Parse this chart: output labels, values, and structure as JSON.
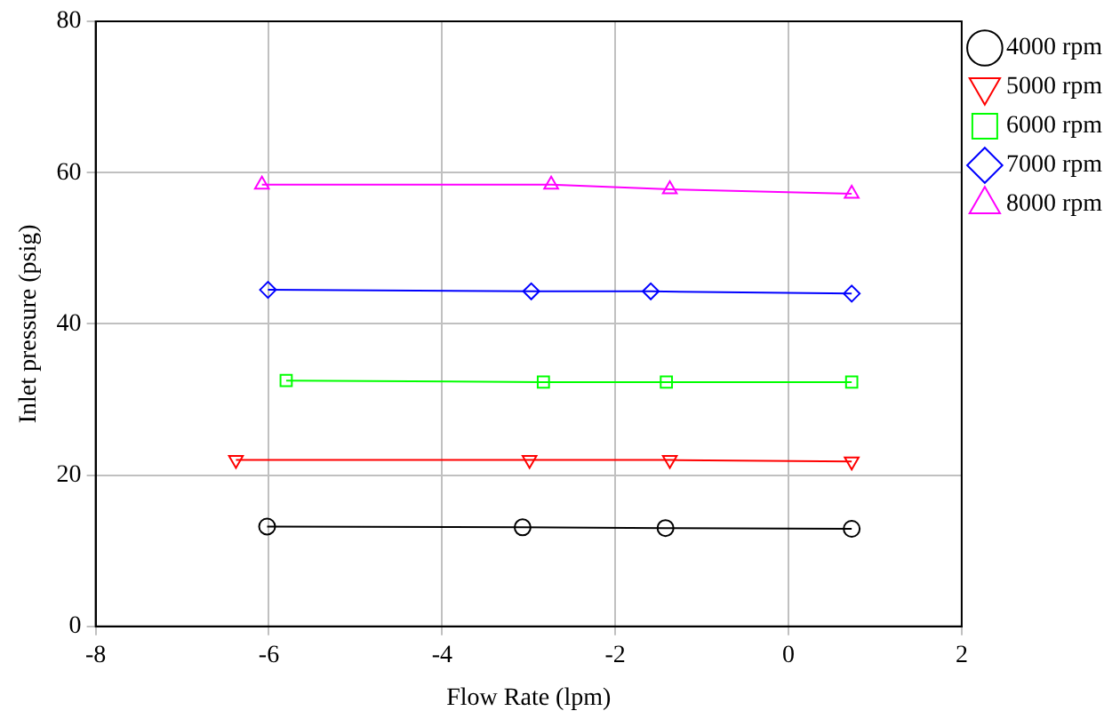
{
  "chart_data": {
    "type": "line",
    "xlabel": "Flow Rate (lpm)",
    "ylabel": "Inlet pressure (psig)",
    "xlim": [
      -8,
      2
    ],
    "xticks": [
      -8,
      -6,
      -4,
      -2,
      0,
      2
    ],
    "ylim": [
      0,
      80
    ],
    "yticks": [
      0,
      20,
      40,
      60,
      80
    ],
    "grid": true,
    "legend": "top right",
    "line_style": "solid",
    "series": [
      {
        "name": "4000 rpm",
        "color": "#000000",
        "marker": "circle",
        "x": [
          -6.02,
          -3.07,
          -1.42,
          0.73
        ],
        "values": [
          13.2,
          13.1,
          13.0,
          12.9
        ]
      },
      {
        "name": "5000 rpm",
        "color": "#ff0000",
        "marker": "triangle-down",
        "x": [
          -6.38,
          -2.99,
          -1.37,
          0.73
        ],
        "values": [
          22.0,
          22.0,
          22.0,
          21.8
        ]
      },
      {
        "name": "6000 rpm",
        "color": "#00ff00",
        "marker": "square",
        "x": [
          -5.8,
          -2.83,
          -1.41,
          0.73
        ],
        "values": [
          32.5,
          32.3,
          32.3,
          32.3
        ]
      },
      {
        "name": "7000 rpm",
        "color": "#0000ff",
        "marker": "diamond",
        "x": [
          -6.01,
          -2.97,
          -1.59,
          0.73
        ],
        "values": [
          44.5,
          44.3,
          44.3,
          44.0
        ]
      },
      {
        "name": "8000 rpm",
        "color": "#ff00ff",
        "marker": "triangle",
        "x": [
          -6.08,
          -2.74,
          -1.37,
          0.73
        ],
        "values": [
          58.4,
          58.4,
          57.8,
          57.2
        ]
      }
    ]
  }
}
